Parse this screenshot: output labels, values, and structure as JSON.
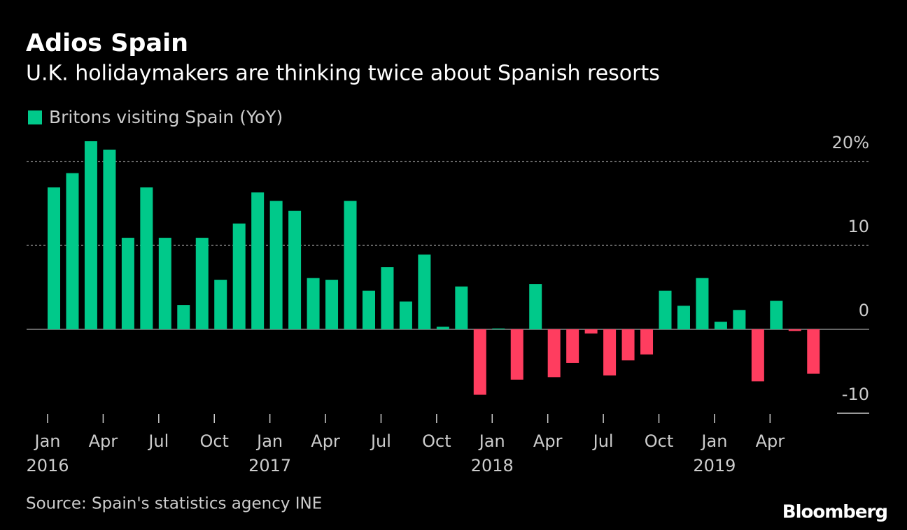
{
  "chart_data": {
    "type": "bar",
    "title": "Adios Spain",
    "subtitle": "U.K. holidaymakers are thinking twice about Spanish resorts",
    "legend": "Britons visiting Spain (YoY)",
    "source": "Source: Spain's statistics agency INE",
    "brand": "Bloomberg",
    "categories": [
      "Jan",
      null,
      null,
      "Apr",
      null,
      null,
      "Jul",
      null,
      null,
      "Oct",
      null,
      null,
      "Jan",
      null,
      null,
      "Apr",
      null,
      null,
      "Jul",
      null,
      null,
      "Oct",
      null,
      null,
      "Jan",
      null,
      null,
      "Apr",
      null,
      null,
      "Jul",
      null,
      null,
      "Oct",
      null,
      null,
      "Jan",
      null,
      null,
      "Apr",
      null,
      null
    ],
    "years": [
      "2016",
      "2017",
      "2018",
      "2019"
    ],
    "values": [
      16.9,
      18.6,
      22.4,
      21.4,
      10.9,
      16.9,
      10.9,
      2.9,
      10.9,
      5.9,
      12.6,
      16.3,
      15.3,
      14.1,
      6.1,
      5.9,
      15.3,
      4.6,
      7.4,
      3.3,
      8.9,
      0.3,
      5.1,
      -7.8,
      0.1,
      -6.0,
      5.4,
      -5.7,
      -4.0,
      -0.5,
      -5.5,
      -3.7,
      -3.0,
      4.6,
      2.8,
      6.1,
      0.9,
      2.3,
      -6.2,
      3.4,
      -0.2,
      -5.3
    ],
    "color": "#00c98a",
    "negative_color": "#ff3d5f",
    "ylim": [
      -10,
      22.4
    ],
    "yticks": [
      {
        "value": 20,
        "label": "20%"
      },
      10,
      0,
      -10
    ],
    "grid": true
  }
}
